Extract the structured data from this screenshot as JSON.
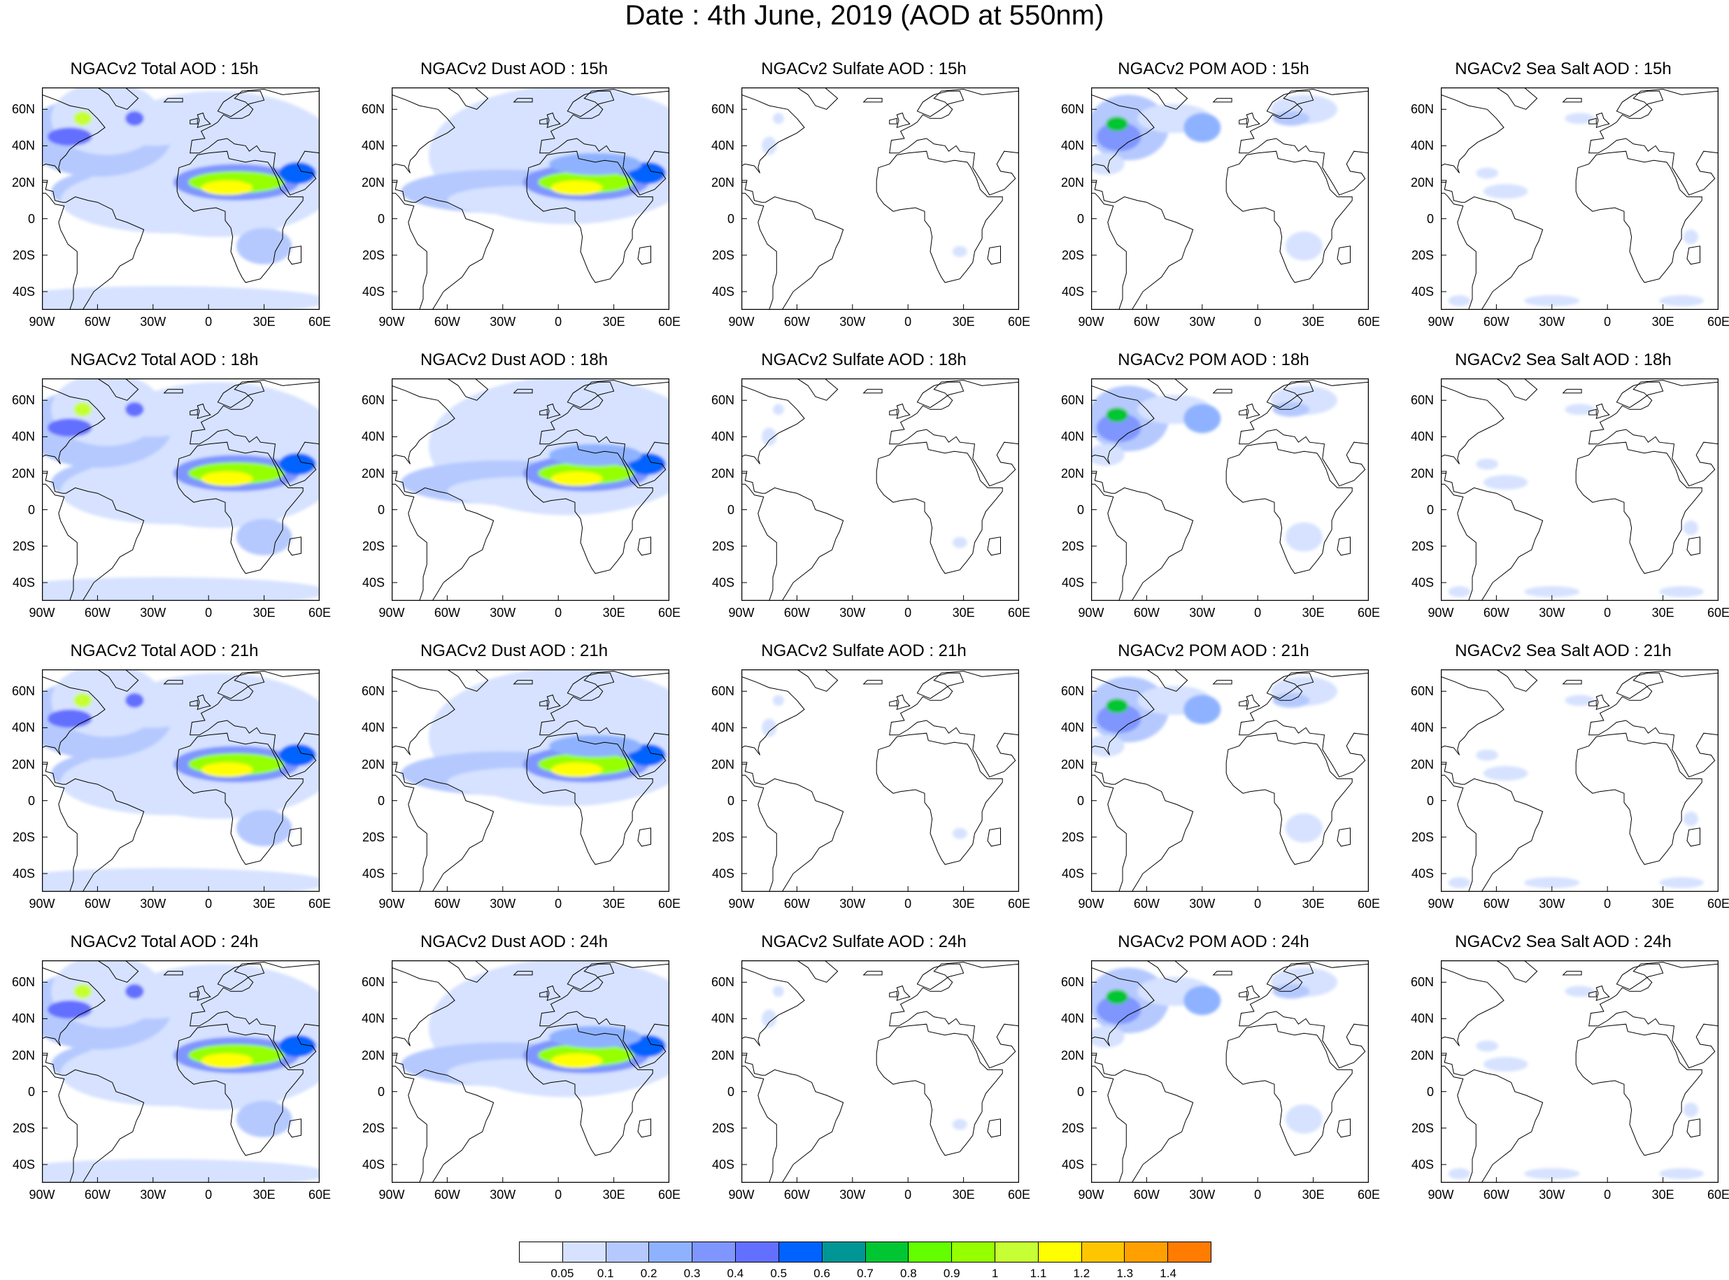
{
  "title": "Date : 4th June, 2019 (AOD at 550nm)",
  "lat_ticks": [
    "60N",
    "40N",
    "20N",
    "0",
    "20S",
    "40S"
  ],
  "lon_ticks": [
    "90W",
    "60W",
    "30W",
    "0",
    "30E",
    "60E"
  ],
  "panels": [
    {
      "title": "NGACv2 Total AOD : 15h",
      "kind": "total"
    },
    {
      "title": "NGACv2 Dust AOD : 15h",
      "kind": "dust"
    },
    {
      "title": "NGACv2 Sulfate AOD : 15h",
      "kind": "sulfate"
    },
    {
      "title": "NGACv2 POM AOD : 15h",
      "kind": "pom"
    },
    {
      "title": "NGACv2 Sea Salt AOD : 15h",
      "kind": "seasalt"
    },
    {
      "title": "NGACv2 Total AOD : 18h",
      "kind": "total"
    },
    {
      "title": "NGACv2 Dust AOD : 18h",
      "kind": "dust"
    },
    {
      "title": "NGACv2 Sulfate AOD : 18h",
      "kind": "sulfate"
    },
    {
      "title": "NGACv2 POM AOD : 18h",
      "kind": "pom"
    },
    {
      "title": "NGACv2 Sea Salt AOD : 18h",
      "kind": "seasalt"
    },
    {
      "title": "NGACv2 Total AOD : 21h",
      "kind": "total"
    },
    {
      "title": "NGACv2 Dust AOD : 21h",
      "kind": "dust"
    },
    {
      "title": "NGACv2 Sulfate AOD : 21h",
      "kind": "sulfate"
    },
    {
      "title": "NGACv2 POM AOD : 21h",
      "kind": "pom"
    },
    {
      "title": "NGACv2 Sea Salt AOD : 21h",
      "kind": "seasalt"
    },
    {
      "title": "NGACv2 Total AOD : 24h",
      "kind": "total"
    },
    {
      "title": "NGACv2 Dust AOD : 24h",
      "kind": "dust"
    },
    {
      "title": "NGACv2 Sulfate AOD : 24h",
      "kind": "sulfate"
    },
    {
      "title": "NGACv2 POM AOD : 24h",
      "kind": "pom"
    },
    {
      "title": "NGACv2 Sea Salt  AOD : 24h",
      "kind": "seasalt"
    }
  ],
  "colorbar": {
    "labels": [
      "0.05",
      "0.1",
      "0.2",
      "0.3",
      "0.4",
      "0.5",
      "0.6",
      "0.7",
      "0.8",
      "0.9",
      "1",
      "1.1",
      "1.2",
      "1.3",
      "1.4"
    ],
    "colors": [
      "#ffffff",
      "#d6e2ff",
      "#b5c9ff",
      "#8eb2ff",
      "#7f96ff",
      "#6370ff",
      "#0063ff",
      "#009696",
      "#00c633",
      "#63ff00",
      "#96ff00",
      "#c6ff33",
      "#ffff00",
      "#ffc600",
      "#ffa000",
      "#ff7c00",
      "#ff1900"
    ]
  }
}
